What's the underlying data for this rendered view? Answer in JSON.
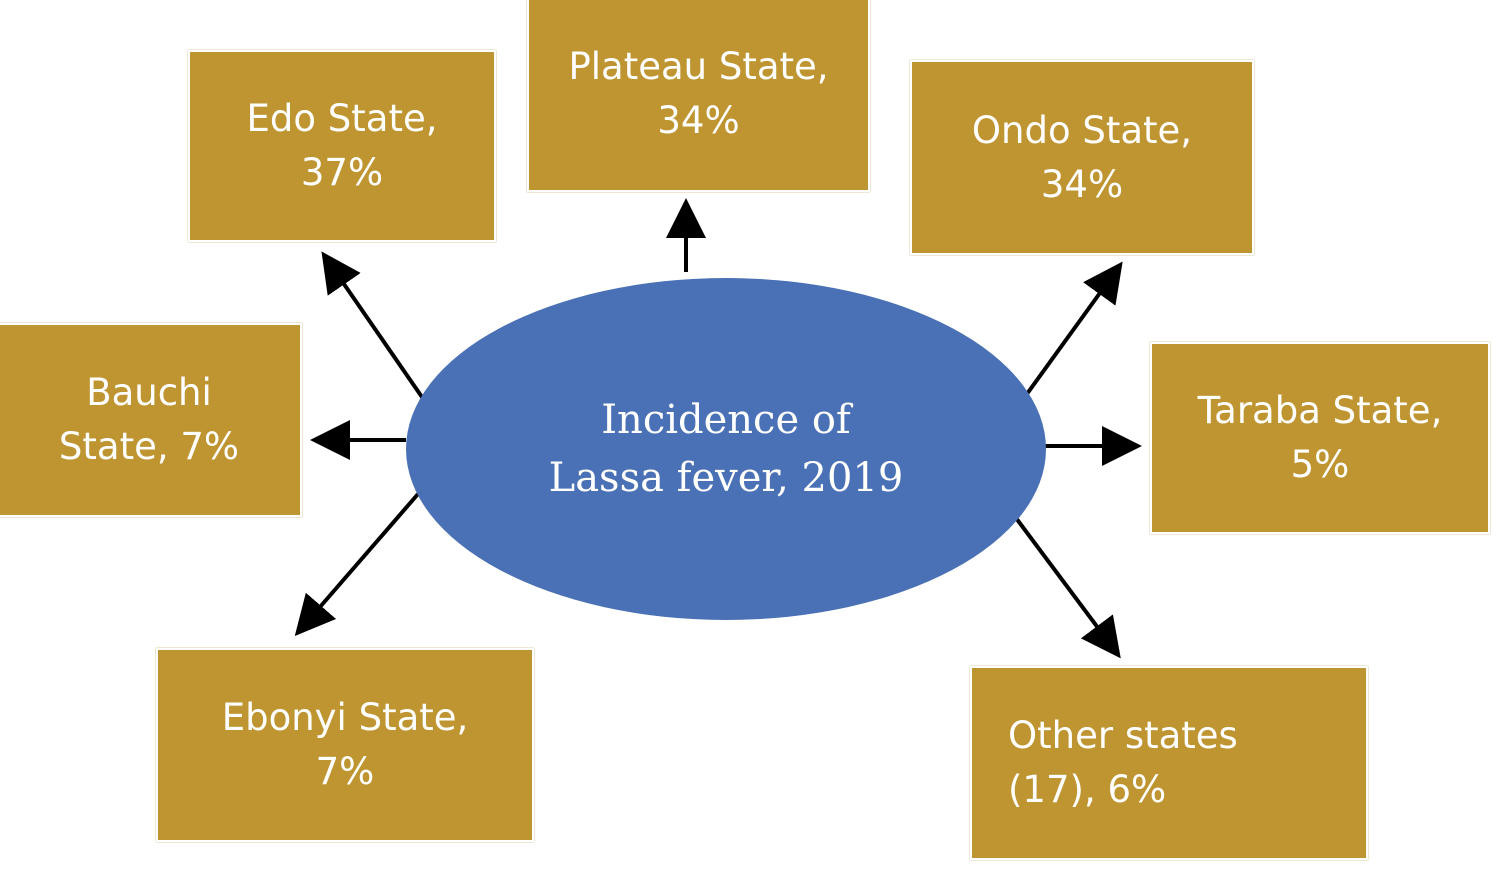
{
  "center": {
    "line1": "Incidence  of",
    "line2": "Lassa fever, 2019"
  },
  "nodes": {
    "edo": {
      "line1": "Edo State,",
      "line2": "37%"
    },
    "plateau": {
      "line1": "Plateau State,",
      "line2": "34%"
    },
    "ondo": {
      "line1": "Ondo State,",
      "line2": "34%"
    },
    "bauchi": {
      "line1": "Bauchi",
      "line2": "State, 7%"
    },
    "taraba": {
      "line1": "Taraba State,",
      "line2": "5%"
    },
    "ebonyi": {
      "line1": "Ebonyi State,",
      "line2": "7%"
    },
    "other": {
      "line1": "Other  states",
      "line2": "(17), 6%"
    }
  },
  "colors": {
    "box": "#bf9532",
    "center": "#4a70b5",
    "arrow": "#000000",
    "text": "#ffffff"
  }
}
